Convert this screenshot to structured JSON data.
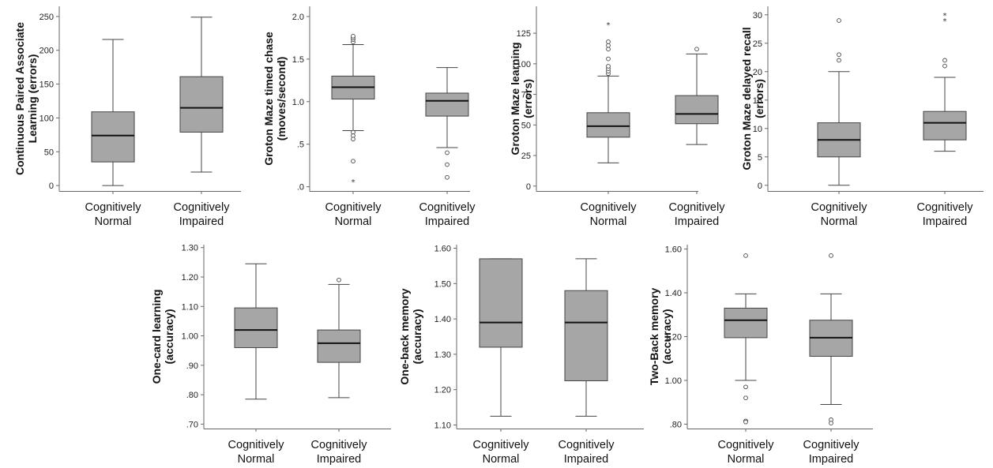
{
  "chart_data": [
    {
      "type": "boxplot",
      "ylabel_lines": [
        "Continuous Paired Associate",
        "Learning (errors)"
      ],
      "yticks": [
        "0",
        "50",
        "100",
        "150",
        "200",
        "250"
      ],
      "ylim": [
        -8,
        265
      ],
      "ytick_values": [
        0,
        50,
        100,
        150,
        200,
        250
      ],
      "categories": [
        [
          "Cognitively",
          "Normal"
        ],
        [
          "Cognitively",
          "Impaired"
        ]
      ],
      "boxes": [
        {
          "min": 0,
          "q1": 35,
          "median": 74,
          "q3": 109,
          "max": 216,
          "outliers": [],
          "extremes": []
        },
        {
          "min": 20,
          "q1": 79,
          "median": 115,
          "q3": 161,
          "max": 249,
          "outliers": [],
          "extremes": []
        }
      ]
    },
    {
      "type": "boxplot",
      "ylabel_lines": [
        "Groton Maze timed chase",
        "(moves/second)"
      ],
      "yticks": [
        ".0",
        ".5",
        "1.0",
        "1.5",
        "2.0"
      ],
      "ylim": [
        -0.05,
        2.12
      ],
      "ytick_values": [
        0,
        0.5,
        1.0,
        1.5,
        2.0
      ],
      "categories": [
        [
          "Cognitively",
          "Normal"
        ],
        [
          "Cognitively",
          "Impaired"
        ]
      ],
      "boxes": [
        {
          "min": 0.66,
          "q1": 1.03,
          "median": 1.17,
          "q3": 1.3,
          "max": 1.67,
          "outliers": [
            1.7,
            1.73,
            1.75,
            1.77,
            0.64,
            0.6,
            0.56,
            0.3
          ],
          "extremes": [
            0.06
          ]
        },
        {
          "min": 0.46,
          "q1": 0.83,
          "median": 1.01,
          "q3": 1.1,
          "max": 1.4,
          "outliers": [
            0.4,
            0.26,
            0.11
          ],
          "extremes": []
        }
      ]
    },
    {
      "type": "boxplot",
      "ylabel_lines": [
        "Groton Maze learning",
        "(errors)"
      ],
      "yticks": [
        "0",
        "25",
        "50",
        "75",
        "100",
        "125"
      ],
      "ylim": [
        -4,
        147
      ],
      "ytick_values": [
        0,
        25,
        50,
        75,
        100,
        125
      ],
      "categories": [
        [
          "Cognitively",
          "Normal"
        ],
        [
          "Cognitively",
          "Impaired"
        ]
      ],
      "boxes": [
        {
          "min": 19,
          "q1": 40,
          "median": 49,
          "q3": 60,
          "max": 90,
          "outliers": [
            92,
            94,
            96,
            98,
            104,
            112,
            115,
            118
          ],
          "extremes": [
            132
          ]
        },
        {
          "min": 34,
          "q1": 51,
          "median": 59,
          "q3": 74,
          "max": 108,
          "outliers": [
            112
          ],
          "extremes": []
        }
      ]
    },
    {
      "type": "boxplot",
      "ylabel_lines": [
        "Groton Maze delayed recall",
        "(errors)"
      ],
      "yticks": [
        "0",
        "5",
        "10",
        "15",
        "20",
        "25",
        "30"
      ],
      "ylim": [
        -1,
        31.5
      ],
      "ytick_values": [
        0,
        5,
        10,
        15,
        20,
        25,
        30
      ],
      "categories": [
        [
          "Cognitively",
          "Normal"
        ],
        [
          "Cognitively",
          "Impaired"
        ]
      ],
      "boxes": [
        {
          "min": 0,
          "q1": 5,
          "median": 8,
          "q3": 11,
          "max": 20,
          "outliers": [
            22,
            23,
            29
          ],
          "extremes": []
        },
        {
          "min": 6,
          "q1": 8,
          "median": 11,
          "q3": 13,
          "max": 19,
          "outliers": [
            21,
            22
          ],
          "extremes": [
            29,
            30
          ]
        }
      ]
    },
    {
      "type": "boxplot",
      "ylabel_lines": [
        "One-card learning",
        "(accuracy)"
      ],
      "yticks": [
        ".70",
        ".80",
        ".90",
        "1.00",
        "1.10",
        "1.20",
        "1.30"
      ],
      "ylim": [
        0.685,
        1.31
      ],
      "ytick_values": [
        0.7,
        0.8,
        0.9,
        1.0,
        1.1,
        1.2,
        1.3
      ],
      "categories": [
        [
          "Cognitively",
          "Normal"
        ],
        [
          "Cognitively",
          "Impaired"
        ]
      ],
      "boxes": [
        {
          "min": 0.785,
          "q1": 0.96,
          "median": 1.02,
          "q3": 1.095,
          "max": 1.245,
          "outliers": [],
          "extremes": []
        },
        {
          "min": 0.79,
          "q1": 0.91,
          "median": 0.975,
          "q3": 1.02,
          "max": 1.175,
          "outliers": [
            1.19
          ],
          "extremes": []
        }
      ]
    },
    {
      "type": "boxplot",
      "ylabel_lines": [
        "One-back memory",
        "(accuracy)"
      ],
      "yticks": [
        "1.10",
        "1.20",
        "1.30",
        "1.40",
        "1.50",
        "1.60"
      ],
      "ylim": [
        1.09,
        1.61
      ],
      "ytick_values": [
        1.1,
        1.2,
        1.3,
        1.4,
        1.5,
        1.6
      ],
      "categories": [
        [
          "Cognitively",
          "Normal"
        ],
        [
          "Cognitively",
          "Impaired"
        ]
      ],
      "boxes": [
        {
          "min": 1.125,
          "q1": 1.32,
          "median": 1.39,
          "q3": 1.57,
          "max": 1.57,
          "outliers": [],
          "extremes": []
        },
        {
          "min": 1.125,
          "q1": 1.225,
          "median": 1.39,
          "q3": 1.48,
          "max": 1.57,
          "outliers": [],
          "extremes": []
        }
      ]
    },
    {
      "type": "boxplot",
      "ylabel_lines": [
        "Two-Back memory",
        "(accuracy)"
      ],
      "yticks": [
        ".80",
        "1.00",
        "1.20",
        "1.40",
        "1.60"
      ],
      "ylim": [
        0.78,
        1.62
      ],
      "ytick_values": [
        0.8,
        1.0,
        1.2,
        1.4,
        1.6
      ],
      "categories": [
        [
          "Cognitively",
          "Normal"
        ],
        [
          "Cognitively",
          "Impaired"
        ]
      ],
      "boxes": [
        {
          "min": 1.0,
          "q1": 1.195,
          "median": 1.275,
          "q3": 1.33,
          "max": 1.395,
          "outliers": [
            1.57,
            0.97,
            0.92,
            0.815,
            0.81
          ],
          "extremes": []
        },
        {
          "min": 0.89,
          "q1": 1.11,
          "median": 1.195,
          "q3": 1.275,
          "max": 1.395,
          "outliers": [
            1.57,
            0.82,
            0.805
          ],
          "extremes": []
        }
      ]
    }
  ]
}
